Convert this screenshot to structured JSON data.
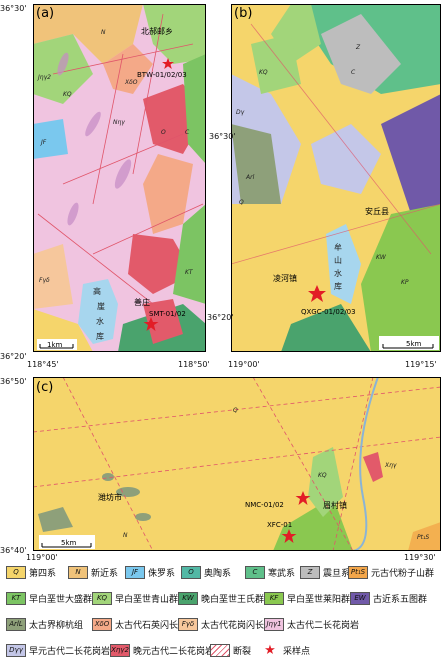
{
  "panels": {
    "a": {
      "label": "(a)",
      "coords": {
        "top_left": "36°30'",
        "bottom_left": "36°20'",
        "bottom_x1": "118°45'",
        "bottom_x2": "118°50'"
      },
      "scale": "1km",
      "places": {
        "north_village": "北郝邮乡",
        "south_village": "善庄",
        "reservoir": [
          "高",
          "崖",
          "水",
          "库"
        ]
      },
      "samples": [
        "BTW-01/02/03",
        "SMT-01/02"
      ],
      "units": [
        "N",
        "KQ",
        "Jηγ2",
        "JF",
        "Nηγ",
        "XδO",
        "Fγδ",
        "KT",
        "C",
        "O"
      ]
    },
    "b": {
      "label": "(b)",
      "coords": {
        "top_right": "36°30'",
        "bottom_left": "36°20'",
        "bottom_x1": "119°00'",
        "bottom_x2": "119°15'"
      },
      "scale": "5km",
      "places": {
        "county": "安丘县",
        "town": "凌河镇",
        "reservoir": [
          "牟",
          "山",
          "水",
          "库"
        ]
      },
      "samples": [
        "QXGC-01/02/03"
      ],
      "units": [
        "Q",
        "KQ",
        "C",
        "Z",
        "Dγ",
        "Arl",
        "KW",
        "KP"
      ]
    },
    "c": {
      "label": "(c)",
      "coords": {
        "top_left": "36°50'",
        "bottom_left": "36°40'",
        "bottom_x1": "119°00'",
        "bottom_x2": "119°30'"
      },
      "scale": "5km",
      "places": {
        "city": "潍坊市",
        "town": "眉村镇"
      },
      "samples": [
        "NMC-01/02",
        "XFC-01"
      ],
      "units": [
        "Q",
        "N",
        "KQ",
        "Xηγ",
        "Pt₁S"
      ]
    }
  },
  "legend": [
    {
      "sym": "Q",
      "label": "第四系",
      "color": "#f5d56b"
    },
    {
      "sym": "N",
      "label": "新近系",
      "color": "#f0c37a"
    },
    {
      "sym": "JF",
      "label": "侏罗系",
      "color": "#7ac8ee"
    },
    {
      "sym": "O",
      "label": "奥陶系",
      "color": "#52b8a5"
    },
    {
      "sym": "C",
      "label": "寒武系",
      "color": "#5fc08a"
    },
    {
      "sym": "Z",
      "label": "震旦系",
      "color": "#bdbdbd"
    },
    {
      "sym": "Pt₁S",
      "label": "元古代粉子山群",
      "color": "#f3a64a"
    },
    {
      "sym": "KT",
      "label": "早白垩世大盛群",
      "color": "#7cc463"
    },
    {
      "sym": "KQ",
      "label": "早白垩世青山群",
      "color": "#a2d57a"
    },
    {
      "sym": "KW",
      "label": "晚白垩世王氏群",
      "color": "#4aa36d"
    },
    {
      "sym": "KF",
      "label": "早白垩世莱阳群",
      "color": "#8ac850"
    },
    {
      "sym": "EW",
      "label": "古近系五图群",
      "color": "#7059a8"
    },
    {
      "sym": "ArlL",
      "label": "太古界柳杭组",
      "color": "#8ea07a"
    },
    {
      "sym": "XδO",
      "label": "太古代石英闪长岩",
      "color": "#f4a988"
    },
    {
      "sym": "Fγδ",
      "label": "太古代花岗闪长岩",
      "color": "#f6c79c"
    },
    {
      "sym": "Jηγ1",
      "label": "太古代二长花岗岩",
      "color": "#f0c4e0"
    },
    {
      "sym": "Dγγ",
      "label": "早元古代二长花岗岩",
      "color": "#c4c7e8"
    },
    {
      "sym": "Xηγ2",
      "label": "晚元古代二长花岗岩",
      "color": "#e25a6a"
    },
    {
      "sym": "",
      "label": "断裂",
      "color": "#ffffff"
    },
    {
      "sym": "★",
      "label": "采样点",
      "color": "#ffffff"
    }
  ]
}
